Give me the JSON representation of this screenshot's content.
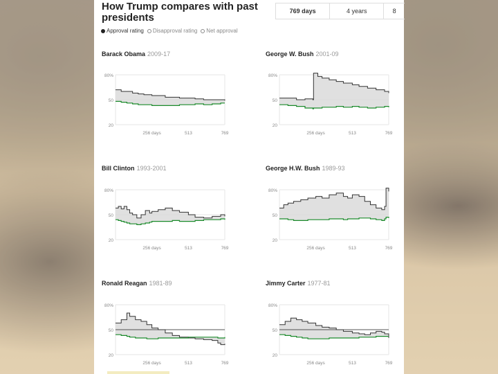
{
  "header": {
    "title": "How Trump compares with past presidents",
    "tabs": [
      "769 days",
      "4 years",
      "8"
    ],
    "legend": [
      "Approval rating",
      "Disapproval rating",
      "Net approval"
    ]
  },
  "colors": {
    "approval": "#1a8a2a",
    "disapproval": "#333333",
    "fill": "#d8d8d8",
    "accent": "#222222"
  },
  "chart_data": [
    {
      "type": "line",
      "title": "Barack Obama",
      "years": "2009-17",
      "ylim": [
        20,
        80
      ],
      "y_ticks": [
        "80%",
        "50",
        "20"
      ],
      "x_ticks": [
        "256 days",
        "513",
        "769"
      ],
      "xlim": [
        0,
        769
      ],
      "series": [
        {
          "name": "Disapproval rating",
          "x": [
            0,
            40,
            80,
            120,
            160,
            200,
            256,
            300,
            350,
            400,
            450,
            513,
            560,
            620,
            680,
            740,
            769
          ],
          "values": [
            62,
            60,
            60,
            58,
            57,
            56,
            55,
            55,
            53,
            53,
            52,
            52,
            51,
            50,
            50,
            50,
            49
          ]
        },
        {
          "name": "Approval rating",
          "x": [
            0,
            40,
            80,
            120,
            160,
            200,
            256,
            300,
            350,
            400,
            450,
            513,
            560,
            620,
            680,
            740,
            769
          ],
          "values": [
            48,
            47,
            46,
            45,
            44,
            44,
            43,
            43,
            43,
            43,
            44,
            44,
            45,
            44,
            45,
            46,
            46
          ]
        }
      ]
    },
    {
      "type": "line",
      "title": "George W. Bush",
      "years": "2001-09",
      "ylim": [
        20,
        80
      ],
      "y_ticks": [
        "80%",
        "50",
        "20"
      ],
      "x_ticks": [
        "256 days",
        "513",
        "769"
      ],
      "xlim": [
        0,
        769
      ],
      "series": [
        {
          "name": "Disapproval rating",
          "x": [
            0,
            60,
            120,
            180,
            235,
            240,
            270,
            300,
            350,
            400,
            450,
            513,
            560,
            620,
            680,
            740,
            769
          ],
          "values": [
            52,
            52,
            50,
            51,
            50,
            82,
            78,
            76,
            74,
            72,
            70,
            68,
            66,
            64,
            62,
            60,
            58
          ]
        },
        {
          "name": "Approval rating",
          "x": [
            0,
            60,
            120,
            180,
            235,
            240,
            270,
            300,
            350,
            400,
            450,
            513,
            560,
            620,
            680,
            740,
            769
          ],
          "values": [
            44,
            43,
            42,
            40,
            39,
            40,
            40,
            41,
            41,
            42,
            41,
            42,
            41,
            40,
            41,
            42,
            41
          ]
        }
      ]
    },
    {
      "type": "line",
      "title": "Bill Clinton",
      "years": "1993-2001",
      "ylim": [
        20,
        80
      ],
      "y_ticks": [
        "80%",
        "50",
        "20"
      ],
      "x_ticks": [
        "256 days",
        "513",
        "769"
      ],
      "xlim": [
        0,
        769
      ],
      "series": [
        {
          "name": "Disapproval rating",
          "x": [
            0,
            20,
            40,
            60,
            80,
            100,
            120,
            150,
            180,
            210,
            240,
            256,
            300,
            350,
            400,
            450,
            513,
            560,
            620,
            680,
            740,
            769
          ],
          "values": [
            58,
            60,
            57,
            60,
            56,
            52,
            50,
            46,
            50,
            55,
            52,
            54,
            56,
            58,
            55,
            53,
            50,
            47,
            46,
            48,
            50,
            48
          ]
        },
        {
          "name": "Approval rating",
          "x": [
            0,
            20,
            40,
            60,
            80,
            100,
            120,
            150,
            180,
            210,
            240,
            256,
            300,
            350,
            400,
            450,
            513,
            560,
            620,
            680,
            740,
            769
          ],
          "values": [
            44,
            43,
            42,
            41,
            40,
            39,
            39,
            38,
            39,
            40,
            41,
            42,
            42,
            42,
            43,
            42,
            42,
            43,
            44,
            44,
            45,
            44
          ]
        }
      ]
    },
    {
      "type": "line",
      "title": "George H.W. Bush",
      "years": "1989-93",
      "ylim": [
        20,
        80
      ],
      "y_ticks": [
        "80%",
        "50",
        "20"
      ],
      "x_ticks": [
        "256 days",
        "513",
        "769"
      ],
      "xlim": [
        0,
        769
      ],
      "series": [
        {
          "name": "Disapproval rating",
          "x": [
            0,
            30,
            60,
            100,
            150,
            200,
            256,
            300,
            350,
            400,
            450,
            480,
            513,
            560,
            600,
            640,
            680,
            720,
            740,
            750,
            769
          ],
          "values": [
            58,
            62,
            64,
            66,
            68,
            70,
            72,
            70,
            74,
            76,
            72,
            70,
            74,
            72,
            66,
            62,
            58,
            56,
            60,
            82,
            78
          ]
        },
        {
          "name": "Approval rating",
          "x": [
            0,
            30,
            60,
            100,
            150,
            200,
            256,
            300,
            350,
            400,
            450,
            480,
            513,
            560,
            600,
            640,
            680,
            720,
            740,
            750,
            769
          ],
          "values": [
            45,
            45,
            44,
            43,
            43,
            44,
            44,
            44,
            45,
            45,
            44,
            45,
            45,
            46,
            46,
            45,
            44,
            43,
            45,
            47,
            46
          ]
        }
      ]
    },
    {
      "type": "line",
      "title": "Ronald Reagan",
      "years": "1981-89",
      "ylim": [
        20,
        80
      ],
      "y_ticks": [
        "80%",
        "50",
        "20"
      ],
      "x_ticks": [
        "256 days",
        "513",
        "769"
      ],
      "xlim": [
        0,
        769
      ],
      "series": [
        {
          "name": "Disapproval rating",
          "x": [
            0,
            40,
            80,
            100,
            140,
            180,
            220,
            256,
            300,
            350,
            400,
            450,
            513,
            560,
            620,
            680,
            720,
            740,
            769
          ],
          "values": [
            58,
            62,
            70,
            66,
            62,
            60,
            56,
            52,
            50,
            46,
            43,
            41,
            40,
            39,
            38,
            37,
            34,
            32,
            33
          ]
        },
        {
          "name": "Approval rating",
          "x": [
            0,
            40,
            80,
            100,
            140,
            180,
            220,
            256,
            300,
            350,
            400,
            450,
            513,
            560,
            620,
            680,
            720,
            740,
            769
          ],
          "values": [
            44,
            43,
            42,
            41,
            40,
            40,
            39,
            39,
            40,
            40,
            40,
            40,
            41,
            41,
            41,
            41,
            40,
            40,
            41
          ]
        }
      ]
    },
    {
      "type": "line",
      "title": "Jimmy Carter",
      "years": "1977-81",
      "ylim": [
        20,
        80
      ],
      "y_ticks": [
        "80%",
        "50",
        "20"
      ],
      "x_ticks": [
        "256 days",
        "513",
        "769"
      ],
      "xlim": [
        0,
        769
      ],
      "series": [
        {
          "name": "Disapproval rating",
          "x": [
            0,
            40,
            80,
            120,
            160,
            200,
            256,
            300,
            350,
            400,
            450,
            513,
            560,
            600,
            640,
            680,
            720,
            740,
            769
          ],
          "values": [
            56,
            60,
            64,
            62,
            60,
            58,
            55,
            53,
            52,
            50,
            48,
            46,
            45,
            44,
            46,
            48,
            47,
            45,
            40
          ]
        },
        {
          "name": "Approval rating",
          "x": [
            0,
            40,
            80,
            120,
            160,
            200,
            256,
            300,
            350,
            400,
            450,
            513,
            560,
            600,
            640,
            680,
            720,
            740,
            769
          ],
          "values": [
            44,
            43,
            42,
            41,
            40,
            39,
            39,
            39,
            40,
            40,
            40,
            40,
            41,
            41,
            41,
            42,
            42,
            42,
            42
          ]
        }
      ]
    }
  ]
}
